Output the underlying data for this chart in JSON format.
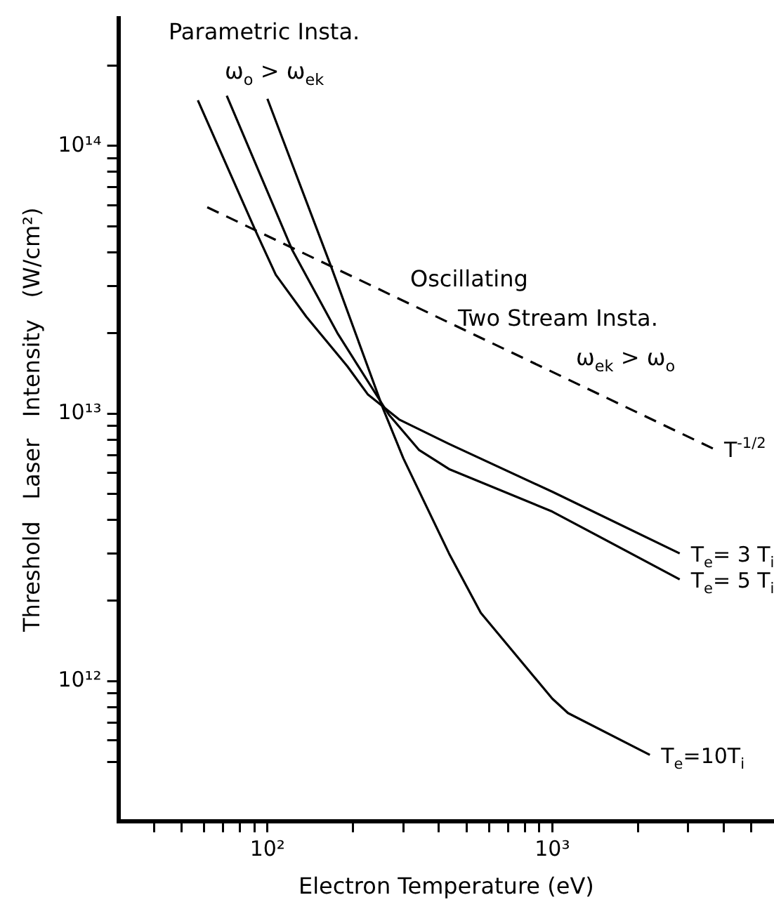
{
  "chart_data": {
    "type": "line",
    "xlabel": "Electron Temperature (eV)",
    "ylabel": "Threshold   Laser   Intensity   (W/cm²)",
    "log": "xy",
    "marker": "none",
    "legend": false,
    "xlim": [
      30,
      6000
    ],
    "ylim": [
      300000000000.0,
      300000000000000.0
    ],
    "xticks": [
      {
        "value": 40,
        "label": null
      },
      {
        "value": 50,
        "label": null
      },
      {
        "value": 60,
        "label": null
      },
      {
        "value": 70,
        "label": null
      },
      {
        "value": 80,
        "label": null
      },
      {
        "value": 90,
        "label": null
      },
      {
        "value": 100,
        "label": "10²"
      },
      {
        "value": 200,
        "label": null
      },
      {
        "value": 300,
        "label": null
      },
      {
        "value": 400,
        "label": null
      },
      {
        "value": 500,
        "label": null
      },
      {
        "value": 600,
        "label": null
      },
      {
        "value": 700,
        "label": null
      },
      {
        "value": 800,
        "label": null
      },
      {
        "value": 900,
        "label": null
      },
      {
        "value": 1000,
        "label": "10³"
      },
      {
        "value": 2000,
        "label": null
      },
      {
        "value": 3000,
        "label": null
      },
      {
        "value": 4000,
        "label": null
      },
      {
        "value": 5000,
        "label": null
      }
    ],
    "yticks": [
      {
        "value": 500000000000.0,
        "label": null
      },
      {
        "value": 600000000000.0,
        "label": null
      },
      {
        "value": 700000000000.0,
        "label": null
      },
      {
        "value": 800000000000.0,
        "label": null
      },
      {
        "value": 900000000000.0,
        "label": null
      },
      {
        "value": 1000000000000.0,
        "label": "10¹²"
      },
      {
        "value": 2000000000000.0,
        "label": null
      },
      {
        "value": 3000000000000.0,
        "label": null
      },
      {
        "value": 4000000000000.0,
        "label": null
      },
      {
        "value": 5000000000000.0,
        "label": null
      },
      {
        "value": 6000000000000.0,
        "label": null
      },
      {
        "value": 7000000000000.0,
        "label": null
      },
      {
        "value": 8000000000000.0,
        "label": null
      },
      {
        "value": 9000000000000.0,
        "label": null
      },
      {
        "value": 10000000000000.0,
        "label": "10¹³"
      },
      {
        "value": 20000000000000.0,
        "label": null
      },
      {
        "value": 30000000000000.0,
        "label": null
      },
      {
        "value": 40000000000000.0,
        "label": null
      },
      {
        "value": 50000000000000.0,
        "label": null
      },
      {
        "value": 60000000000000.0,
        "label": null
      },
      {
        "value": 70000000000000.0,
        "label": null
      },
      {
        "value": 80000000000000.0,
        "label": null
      },
      {
        "value": 90000000000000.0,
        "label": null
      },
      {
        "value": 100000000000000.0,
        "label": "10¹⁴"
      },
      {
        "value": 200000000000000.0,
        "label": null
      }
    ],
    "series": [
      {
        "name": "T$_{e}$= 3 T$_{i}$",
        "color": "#000000",
        "line_style": "solid",
        "x": [
          57,
          91,
          107,
          137,
          191,
          225,
          290,
          434,
          1000,
          2800
        ],
        "values": [
          148000000000000.0,
          48000000000000.0,
          33000000000000.0,
          23000000000000.0,
          15000000000000.0,
          11800000000000.0,
          9500000000000.0,
          7700000000000.0,
          5100000000000.0,
          3000000000000.0
        ]
      },
      {
        "name": "T$_{e}$= 5 T$_{i}$",
        "color": "#000000",
        "line_style": "solid",
        "x": [
          72,
          122,
          176,
          267,
          341,
          434,
          1000,
          2800
        ],
        "values": [
          154000000000000.0,
          41000000000000.0,
          20000000000000.0,
          9900000000000.0,
          7300000000000.0,
          6200000000000.0,
          4300000000000.0,
          2400000000000.0
        ]
      },
      {
        "name": "T$_{e}$=10T$_{i}$",
        "color": "#000000",
        "line_style": "solid",
        "x": [
          100,
          168,
          255,
          300,
          434,
          561,
          1000,
          1135,
          2200
        ],
        "values": [
          150000000000000.0,
          35000000000000.0,
          10400000000000.0,
          6800000000000.0,
          3000000000000.0,
          1800000000000.0,
          860000000000.0,
          760000000000.0,
          530000000000.0
        ]
      },
      {
        "name": "T$^{-1/2}$",
        "color": "#000000",
        "line_style": "dashed",
        "x": [
          61.5,
          3660
        ],
        "values": [
          59000000000000.0,
          7400000000000.0
        ]
      }
    ],
    "annotations": [
      "Parametric Insta.",
      "ω$_{o}$ > ω$_{ek}$",
      "Oscillating",
      "Two Stream Insta.",
      "ω$_{ek}$ > ω$_{o}$"
    ]
  }
}
